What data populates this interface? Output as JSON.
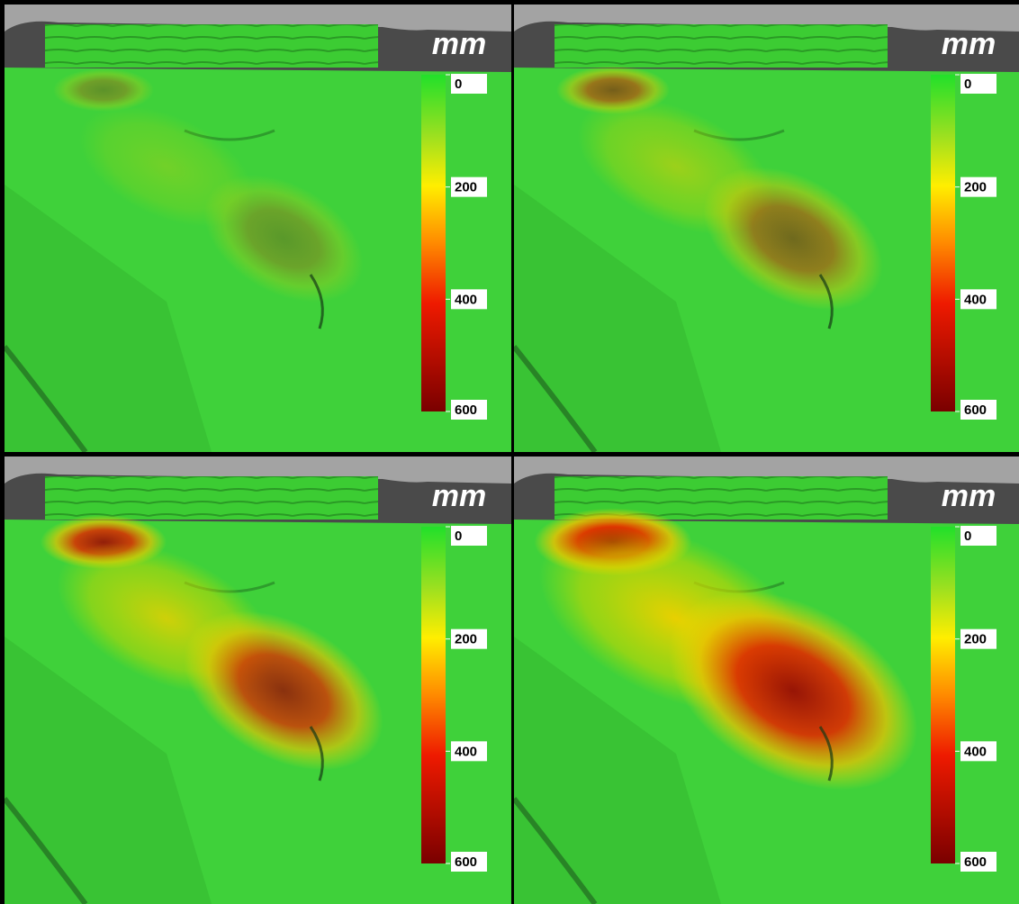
{
  "panels": [
    {
      "unit": "mm",
      "colorbar_ticks": [
        0,
        200,
        400,
        600
      ]
    },
    {
      "unit": "mm",
      "colorbar_ticks": [
        0,
        200,
        400,
        600
      ]
    },
    {
      "unit": "mm",
      "colorbar_ticks": [
        0,
        200,
        400,
        600
      ]
    },
    {
      "unit": "mm",
      "colorbar_ticks": [
        0,
        200,
        400,
        600
      ]
    }
  ]
}
